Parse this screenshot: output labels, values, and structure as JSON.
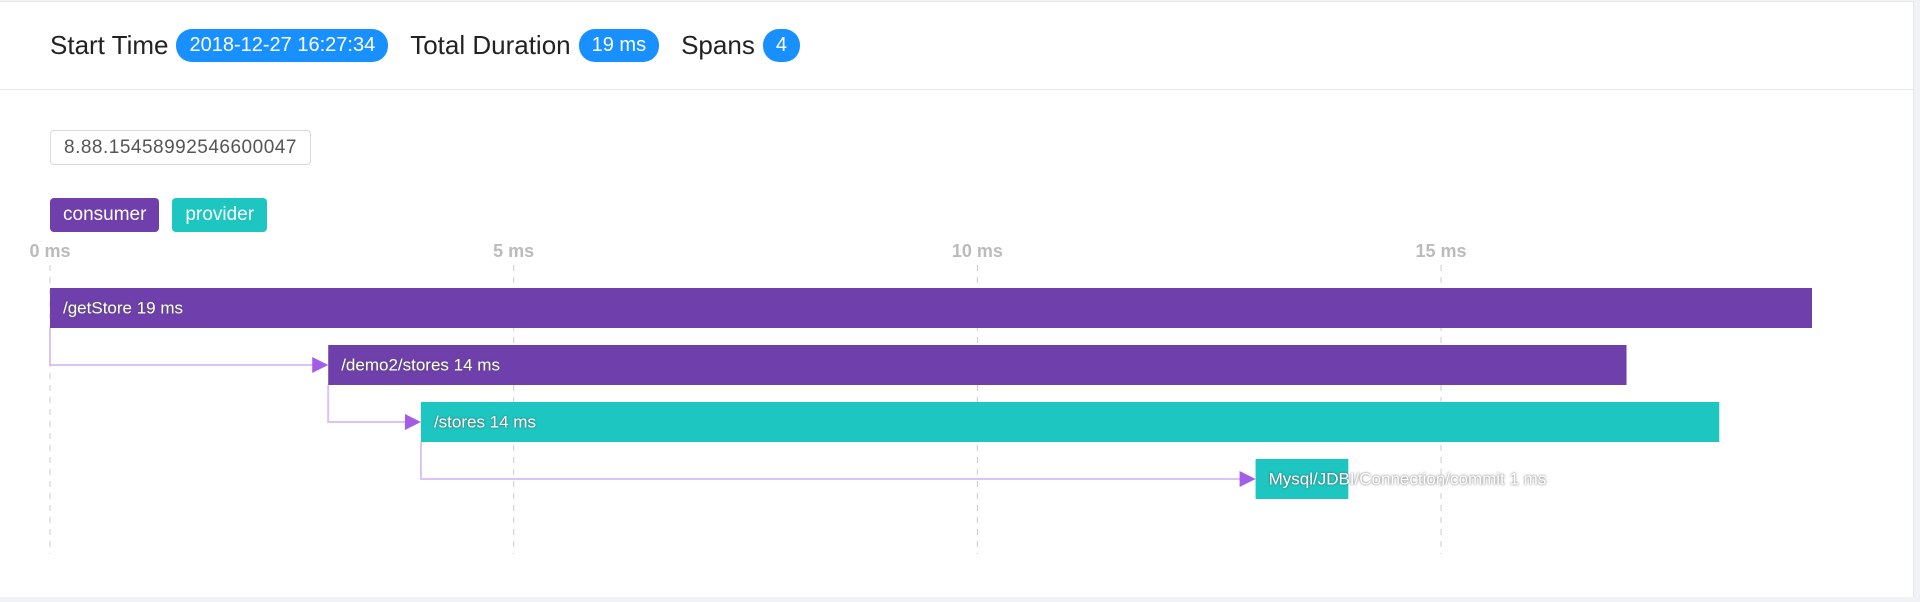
{
  "header": {
    "items": [
      {
        "label": "Start Time",
        "value": "2018-12-27 16:27:34"
      },
      {
        "label": "Total Duration",
        "value": "19 ms"
      },
      {
        "label": "Spans",
        "value": "4"
      }
    ]
  },
  "trace_id": "8.88.15458992546600047",
  "legend": [
    {
      "name": "consumer",
      "color": "#6f3fab"
    },
    {
      "name": "provider",
      "color": "#1dc6c1"
    }
  ],
  "timeline": {
    "xlim": [
      0,
      19
    ],
    "xticks": [
      {
        "value": 0,
        "label": "0 ms"
      },
      {
        "value": 5,
        "label": "5 ms"
      },
      {
        "value": 10,
        "label": "10 ms"
      },
      {
        "value": 15,
        "label": "15 ms"
      }
    ],
    "spans": [
      {
        "label": "/getStore 19 ms",
        "start": 0,
        "end": 19,
        "color": "#6f3fab"
      },
      {
        "label": "/demo2/stores 14 ms",
        "start": 3,
        "end": 17,
        "color": "#6f3fab"
      },
      {
        "label": "/stores 14 ms",
        "start": 4,
        "end": 18,
        "color": "#1dc6c1"
      },
      {
        "label": "Mysql/JDBI/Connection/commit 1 ms",
        "start": 13,
        "end": 14,
        "color": "#1dc6c1"
      }
    ]
  }
}
